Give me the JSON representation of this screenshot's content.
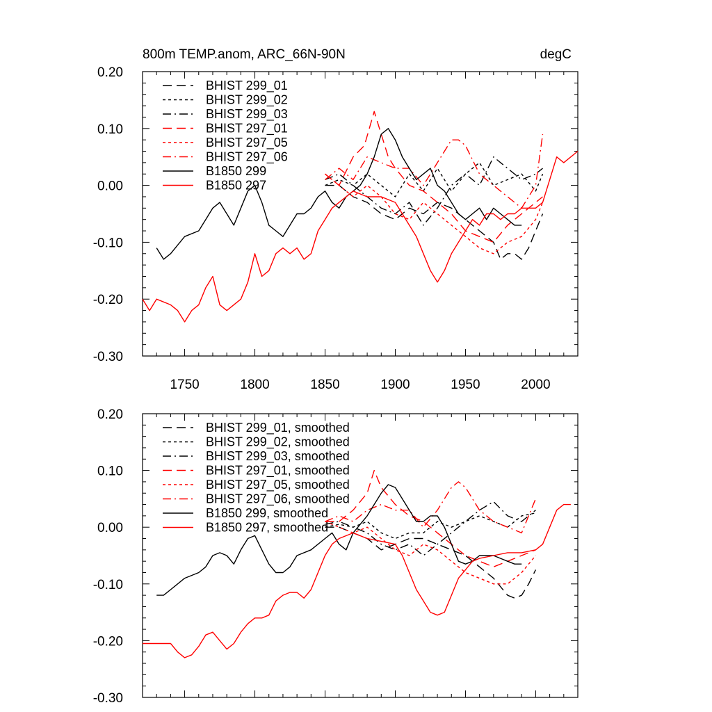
{
  "chart_data": [
    {
      "type": "line",
      "title": "800m TEMP.anom, ARC_66N-90N",
      "units": "degC",
      "xlabel": "",
      "ylabel": "",
      "xlim": [
        1720,
        2030
      ],
      "ylim": [
        -0.3,
        0.2
      ],
      "xticks": [
        1750,
        1800,
        1850,
        1900,
        1950,
        2000
      ],
      "xticklabels": [
        "1750",
        "1800",
        "1850",
        "1900",
        "1950",
        "2000"
      ],
      "yticks": [
        0.2,
        0.1,
        0.0,
        -0.1,
        -0.2,
        -0.3
      ],
      "yticklabels": [
        "0.20",
        "0.10",
        "0.00",
        "-0.10",
        "-0.20",
        "-0.30"
      ],
      "legend_position": "top-left",
      "series": [
        {
          "name": "BHIST 299_01",
          "color": "#000000",
          "dash": "long-dash",
          "x": [
            1850,
            1860,
            1870,
            1880,
            1890,
            1900,
            1910,
            1920,
            1930,
            1940,
            1950,
            1960,
            1970,
            1975,
            1980,
            1985,
            1990,
            1995,
            2000,
            2005
          ],
          "y": [
            0.0,
            0.0,
            -0.02,
            -0.03,
            -0.05,
            -0.06,
            -0.04,
            -0.05,
            -0.03,
            -0.04,
            -0.06,
            -0.08,
            -0.1,
            -0.13,
            -0.12,
            -0.12,
            -0.13,
            -0.11,
            -0.08,
            -0.05
          ]
        },
        {
          "name": "BHIST 299_02",
          "color": "#000000",
          "dash": "short-dash",
          "x": [
            1850,
            1860,
            1870,
            1880,
            1890,
            1900,
            1910,
            1920,
            1930,
            1940,
            1950,
            1960,
            1970,
            1980,
            1990,
            2000,
            2005
          ],
          "y": [
            0.0,
            0.01,
            0.0,
            0.02,
            0.0,
            -0.02,
            0.02,
            -0.01,
            0.03,
            -0.01,
            0.02,
            0.04,
            0.0,
            0.01,
            0.02,
            -0.01,
            0.02
          ]
        },
        {
          "name": "BHIST 299_03",
          "color": "#000000",
          "dash": "dash-dot",
          "x": [
            1850,
            1860,
            1870,
            1880,
            1890,
            1900,
            1910,
            1920,
            1930,
            1940,
            1950,
            1960,
            1970,
            1980,
            1990,
            2000,
            2005
          ],
          "y": [
            0.01,
            0.02,
            0.0,
            -0.02,
            -0.04,
            -0.05,
            -0.03,
            -0.07,
            -0.04,
            0.0,
            0.02,
            0.0,
            0.05,
            0.03,
            0.01,
            0.02,
            0.03
          ]
        },
        {
          "name": "BHIST 297_01",
          "color": "#ff0000",
          "dash": "long-dash",
          "x": [
            1850,
            1860,
            1870,
            1878,
            1885,
            1890,
            1895,
            1900,
            1910,
            1920,
            1930,
            1940,
            1950,
            1960,
            1970,
            1980,
            1990,
            2000,
            2005
          ],
          "y": [
            0.02,
            0.0,
            0.05,
            0.07,
            0.13,
            0.09,
            0.05,
            0.03,
            0.0,
            -0.01,
            -0.03,
            -0.05,
            -0.08,
            -0.09,
            -0.1,
            -0.07,
            -0.05,
            -0.03,
            -0.02
          ]
        },
        {
          "name": "BHIST 297_05",
          "color": "#ff0000",
          "dash": "short-dash",
          "x": [
            1850,
            1860,
            1870,
            1880,
            1890,
            1900,
            1910,
            1920,
            1930,
            1940,
            1950,
            1960,
            1970,
            1980,
            1990,
            2000,
            2005
          ],
          "y": [
            0.02,
            0.0,
            -0.02,
            0.0,
            -0.02,
            -0.05,
            -0.06,
            -0.03,
            -0.05,
            -0.07,
            -0.09,
            -0.11,
            -0.12,
            -0.1,
            -0.09,
            -0.06,
            -0.03
          ]
        },
        {
          "name": "BHIST 297_06",
          "color": "#ff0000",
          "dash": "dash-dot",
          "x": [
            1850,
            1860,
            1870,
            1880,
            1890,
            1900,
            1910,
            1920,
            1930,
            1940,
            1945,
            1950,
            1960,
            1970,
            1980,
            1990,
            2000,
            2005
          ],
          "y": [
            0.01,
            0.03,
            0.01,
            0.05,
            0.04,
            0.03,
            0.03,
            0.0,
            0.04,
            0.08,
            0.08,
            0.07,
            0.02,
            0.0,
            -0.02,
            -0.04,
            0.0,
            0.09
          ]
        },
        {
          "name": "B1850 299",
          "color": "#000000",
          "dash": "solid",
          "x": [
            1730,
            1735,
            1740,
            1750,
            1760,
            1765,
            1770,
            1775,
            1780,
            1785,
            1790,
            1795,
            1800,
            1805,
            1810,
            1815,
            1820,
            1825,
            1830,
            1835,
            1840,
            1845,
            1850,
            1855,
            1860,
            1865,
            1870,
            1875,
            1880,
            1885,
            1890,
            1895,
            1900,
            1905,
            1910,
            1915,
            1920,
            1925,
            1930,
            1935,
            1940,
            1945,
            1950,
            1955,
            1960,
            1965,
            1970,
            1975,
            1980,
            1985,
            1990
          ],
          "y": [
            -0.11,
            -0.13,
            -0.12,
            -0.09,
            -0.08,
            -0.06,
            -0.04,
            -0.03,
            -0.05,
            -0.07,
            -0.04,
            -0.01,
            0.0,
            -0.03,
            -0.07,
            -0.08,
            -0.09,
            -0.07,
            -0.05,
            -0.05,
            -0.04,
            -0.02,
            -0.01,
            -0.03,
            -0.04,
            -0.02,
            -0.01,
            0.0,
            0.02,
            0.05,
            0.09,
            0.1,
            0.08,
            0.05,
            0.03,
            0.01,
            0.02,
            0.03,
            0.0,
            -0.01,
            -0.03,
            -0.05,
            -0.06,
            -0.05,
            -0.04,
            -0.06,
            -0.04,
            -0.05,
            -0.06,
            -0.07,
            -0.07
          ]
        },
        {
          "name": "B1850 297",
          "color": "#ff0000",
          "dash": "solid",
          "x": [
            1720,
            1725,
            1730,
            1740,
            1745,
            1750,
            1755,
            1760,
            1765,
            1770,
            1775,
            1780,
            1790,
            1795,
            1800,
            1805,
            1810,
            1815,
            1820,
            1825,
            1830,
            1835,
            1840,
            1845,
            1850,
            1855,
            1860,
            1865,
            1870,
            1880,
            1890,
            1900,
            1910,
            1915,
            1920,
            1925,
            1930,
            1935,
            1940,
            1945,
            1950,
            1955,
            1960,
            1965,
            1970,
            1975,
            1980,
            1985,
            1990,
            1995,
            2000,
            2005,
            2010,
            2015,
            2020,
            2025,
            2030
          ],
          "y": [
            -0.2,
            -0.22,
            -0.2,
            -0.21,
            -0.22,
            -0.24,
            -0.22,
            -0.21,
            -0.18,
            -0.16,
            -0.21,
            -0.22,
            -0.2,
            -0.17,
            -0.12,
            -0.16,
            -0.15,
            -0.12,
            -0.11,
            -0.12,
            -0.11,
            -0.13,
            -0.12,
            -0.08,
            -0.06,
            -0.04,
            -0.03,
            -0.02,
            -0.01,
            -0.02,
            -0.02,
            -0.03,
            -0.07,
            -0.09,
            -0.12,
            -0.15,
            -0.17,
            -0.15,
            -0.12,
            -0.1,
            -0.08,
            -0.06,
            -0.07,
            -0.05,
            -0.05,
            -0.06,
            -0.05,
            -0.05,
            -0.04,
            -0.04,
            -0.04,
            -0.03,
            0.01,
            0.05,
            0.04,
            0.05,
            0.06
          ]
        }
      ]
    },
    {
      "type": "line",
      "title": "",
      "xlabel": "",
      "ylabel": "",
      "xlim": [
        1720,
        2030
      ],
      "ylim": [
        -0.3,
        0.2
      ],
      "xticks": [
        1750,
        1800,
        1850,
        1900,
        1950,
        2000
      ],
      "xticklabels": [],
      "yticks": [
        0.2,
        0.1,
        0.0,
        -0.1,
        -0.2,
        -0.3
      ],
      "yticklabels": [
        "0.20",
        "0.10",
        "0.00",
        "-0.10",
        "-0.20",
        "-0.30"
      ],
      "legend_position": "top-left",
      "series": [
        {
          "name": "BHIST 299_01, smoothed",
          "color": "#000000",
          "dash": "long-dash",
          "x": [
            1850,
            1860,
            1870,
            1880,
            1890,
            1900,
            1910,
            1920,
            1930,
            1940,
            1950,
            1960,
            1970,
            1980,
            1985,
            1990,
            1995,
            2000
          ],
          "y": [
            0.0,
            0.0,
            -0.01,
            -0.02,
            -0.04,
            -0.03,
            -0.02,
            -0.02,
            -0.03,
            -0.04,
            -0.05,
            -0.07,
            -0.09,
            -0.12,
            -0.125,
            -0.12,
            -0.1,
            -0.075
          ]
        },
        {
          "name": "BHIST 299_02, smoothed",
          "color": "#000000",
          "dash": "short-dash",
          "x": [
            1850,
            1860,
            1870,
            1880,
            1890,
            1900,
            1910,
            1920,
            1930,
            1940,
            1950,
            1960,
            1970,
            1980,
            1990,
            2000
          ],
          "y": [
            0.0,
            0.005,
            0.0,
            0.01,
            -0.01,
            -0.02,
            -0.01,
            -0.01,
            0.01,
            0.0,
            0.01,
            0.02,
            0.01,
            0.0,
            0.02,
            0.025
          ]
        },
        {
          "name": "BHIST 299_03, smoothed",
          "color": "#000000",
          "dash": "dash-dot",
          "x": [
            1850,
            1860,
            1870,
            1880,
            1890,
            1900,
            1910,
            1920,
            1930,
            1940,
            1950,
            1960,
            1970,
            1980,
            1990,
            2000
          ],
          "y": [
            0.005,
            0.01,
            0.0,
            -0.01,
            -0.03,
            -0.04,
            -0.03,
            -0.05,
            -0.03,
            -0.01,
            0.01,
            0.03,
            0.045,
            0.02,
            0.01,
            0.03
          ]
        },
        {
          "name": "BHIST 297_01, smoothed",
          "color": "#ff0000",
          "dash": "long-dash",
          "x": [
            1850,
            1860,
            1870,
            1880,
            1885,
            1890,
            1900,
            1910,
            1920,
            1930,
            1940,
            1950,
            1960,
            1970,
            1980,
            1990,
            2000
          ],
          "y": [
            0.01,
            0.01,
            0.03,
            0.06,
            0.1,
            0.07,
            0.04,
            0.02,
            0.01,
            -0.01,
            -0.03,
            -0.05,
            -0.06,
            -0.07,
            -0.06,
            -0.05,
            -0.04
          ]
        },
        {
          "name": "BHIST 297_05, smoothed",
          "color": "#ff0000",
          "dash": "short-dash",
          "x": [
            1850,
            1860,
            1870,
            1880,
            1890,
            1900,
            1910,
            1920,
            1930,
            1940,
            1950,
            1960,
            1970,
            1980,
            1990,
            2000
          ],
          "y": [
            0.01,
            0.0,
            -0.01,
            0.0,
            -0.02,
            -0.04,
            -0.05,
            -0.03,
            -0.04,
            -0.06,
            -0.08,
            -0.09,
            -0.1,
            -0.1,
            -0.08,
            -0.05
          ]
        },
        {
          "name": "BHIST 297_06, smoothed",
          "color": "#ff0000",
          "dash": "dash-dot",
          "x": [
            1850,
            1860,
            1870,
            1880,
            1890,
            1900,
            1910,
            1920,
            1930,
            1940,
            1945,
            1950,
            1960,
            1970,
            1980,
            1990,
            2000
          ],
          "y": [
            0.01,
            0.02,
            0.01,
            0.03,
            0.04,
            0.03,
            0.03,
            0.0,
            0.03,
            0.07,
            0.08,
            0.07,
            0.03,
            0.01,
            0.0,
            -0.01,
            0.05
          ]
        },
        {
          "name": "B1850 299, smoothed",
          "color": "#000000",
          "dash": "solid",
          "x": [
            1730,
            1735,
            1740,
            1750,
            1760,
            1765,
            1770,
            1775,
            1780,
            1785,
            1790,
            1795,
            1800,
            1805,
            1810,
            1815,
            1820,
            1825,
            1830,
            1840,
            1850,
            1855,
            1860,
            1865,
            1870,
            1880,
            1890,
            1895,
            1900,
            1905,
            1910,
            1915,
            1920,
            1925,
            1930,
            1935,
            1940,
            1945,
            1950,
            1955,
            1960,
            1965,
            1970,
            1975,
            1980,
            1985,
            1990
          ],
          "y": [
            -0.12,
            -0.12,
            -0.11,
            -0.09,
            -0.08,
            -0.07,
            -0.05,
            -0.045,
            -0.05,
            -0.065,
            -0.04,
            -0.02,
            -0.015,
            -0.04,
            -0.065,
            -0.08,
            -0.08,
            -0.07,
            -0.05,
            -0.04,
            -0.02,
            -0.01,
            -0.03,
            -0.04,
            -0.01,
            0.02,
            0.06,
            0.075,
            0.07,
            0.05,
            0.03,
            0.01,
            0.01,
            0.02,
            0.02,
            0.0,
            -0.03,
            -0.06,
            -0.065,
            -0.06,
            -0.05,
            -0.05,
            -0.05,
            -0.055,
            -0.06,
            -0.065,
            -0.065
          ]
        },
        {
          "name": "B1850 297, smoothed",
          "color": "#ff0000",
          "dash": "solid",
          "x": [
            1720,
            1725,
            1730,
            1740,
            1745,
            1750,
            1755,
            1760,
            1765,
            1770,
            1775,
            1780,
            1785,
            1790,
            1795,
            1800,
            1805,
            1810,
            1815,
            1820,
            1825,
            1830,
            1835,
            1840,
            1845,
            1850,
            1855,
            1860,
            1870,
            1880,
            1890,
            1900,
            1905,
            1910,
            1915,
            1920,
            1925,
            1930,
            1935,
            1940,
            1945,
            1950,
            1955,
            1960,
            1970,
            1980,
            1990,
            2000,
            2005,
            2010,
            2015,
            2020,
            2025
          ],
          "y": [
            -0.205,
            -0.205,
            -0.205,
            -0.205,
            -0.22,
            -0.23,
            -0.225,
            -0.21,
            -0.19,
            -0.185,
            -0.2,
            -0.215,
            -0.205,
            -0.185,
            -0.17,
            -0.16,
            -0.16,
            -0.155,
            -0.13,
            -0.12,
            -0.115,
            -0.115,
            -0.125,
            -0.11,
            -0.08,
            -0.05,
            -0.03,
            -0.02,
            -0.01,
            -0.02,
            -0.025,
            -0.03,
            -0.05,
            -0.08,
            -0.11,
            -0.13,
            -0.15,
            -0.155,
            -0.15,
            -0.12,
            -0.09,
            -0.075,
            -0.06,
            -0.055,
            -0.05,
            -0.045,
            -0.045,
            -0.04,
            -0.03,
            0.0,
            0.03,
            0.04,
            0.04
          ]
        }
      ]
    }
  ]
}
